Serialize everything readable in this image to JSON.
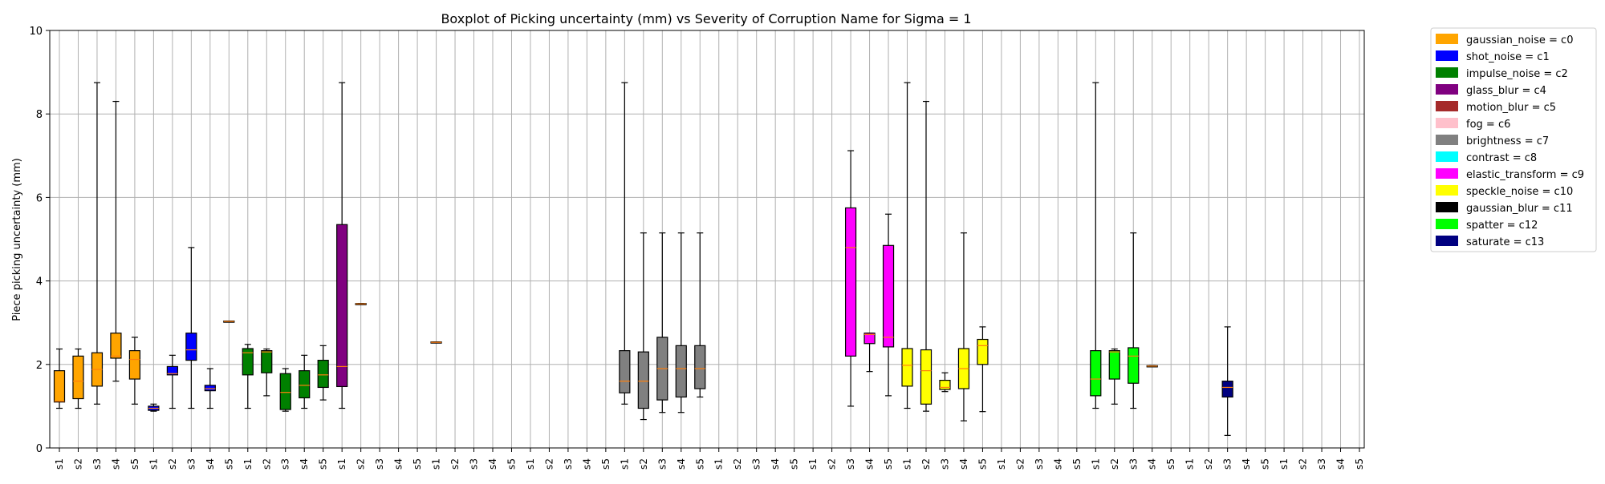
{
  "chart_data": {
    "type": "box",
    "title": "Boxplot of Picking uncertainty (mm) vs Severity of Corruption Name for Sigma = 1",
    "xlabel": "",
    "ylabel": "Piece picking uncertainty (mm)",
    "ylim": [
      0,
      10
    ],
    "yticks": [
      0,
      2,
      4,
      6,
      8,
      10
    ],
    "grid": true,
    "legend_position": "right, outside plot",
    "median_color": "#ff7f0e",
    "categories": [
      "s1",
      "s2",
      "s3",
      "s4",
      "s5",
      "s1",
      "s2",
      "s3",
      "s4",
      "s5",
      "s1",
      "s2",
      "s3",
      "s4",
      "s5",
      "s1",
      "s2",
      "s3",
      "s4",
      "s5",
      "s1",
      "s2",
      "s3",
      "s4",
      "s5",
      "s1",
      "s2",
      "s3",
      "s4",
      "s5",
      "s1",
      "s2",
      "s3",
      "s4",
      "s5",
      "s1",
      "s2",
      "s3",
      "s4",
      "s5",
      "s1",
      "s2",
      "s3",
      "s4",
      "s5",
      "s1",
      "s2",
      "s3",
      "s4",
      "s5",
      "s1",
      "s2",
      "s3",
      "s4",
      "s5",
      "s1",
      "s2",
      "s3",
      "s4",
      "s5",
      "s1",
      "s2",
      "s3",
      "s4",
      "s5",
      "s1",
      "s2",
      "s3",
      "s4",
      "s5"
    ],
    "series": [
      {
        "name": "gaussian_noise = c0",
        "color": "#ffa500",
        "boxes": [
          {
            "x": 0,
            "min": 0.95,
            "q1": 1.1,
            "median": 1.12,
            "q3": 1.85,
            "max": 2.37
          },
          {
            "x": 1,
            "min": 0.95,
            "q1": 1.18,
            "median": 1.6,
            "q3": 2.2,
            "max": 2.37
          },
          {
            "x": 2,
            "min": 1.05,
            "q1": 1.48,
            "median": 1.88,
            "q3": 2.28,
            "max": 8.75
          },
          {
            "x": 3,
            "min": 1.6,
            "q1": 2.15,
            "median": 2.2,
            "q3": 2.75,
            "max": 8.3
          },
          {
            "x": 4,
            "min": 1.05,
            "q1": 1.65,
            "median": 2.12,
            "q3": 2.33,
            "max": 2.65
          }
        ]
      },
      {
        "name": "shot_noise = c1",
        "color": "#0000ff",
        "boxes": [
          {
            "x": 5,
            "min": 0.88,
            "q1": 0.9,
            "median": 0.95,
            "q3": 1.0,
            "max": 1.05
          },
          {
            "x": 6,
            "min": 0.95,
            "q1": 1.75,
            "median": 1.78,
            "q3": 1.95,
            "max": 2.22
          },
          {
            "x": 7,
            "min": 0.95,
            "q1": 2.1,
            "median": 2.35,
            "q3": 2.75,
            "max": 4.8
          },
          {
            "x": 8,
            "min": 0.95,
            "q1": 1.37,
            "median": 1.42,
            "q3": 1.5,
            "max": 1.9
          }
        ]
      },
      {
        "name": "impulse_noise = c2",
        "color": "#008000",
        "boxes": [
          {
            "x": 9,
            "min": 3.02,
            "q1": 3.02,
            "median": 3.03,
            "q3": 3.04,
            "max": 3.04
          },
          {
            "x": 10,
            "min": 0.95,
            "q1": 1.75,
            "median": 2.28,
            "q3": 2.38,
            "max": 2.48
          },
          {
            "x": 11,
            "min": 1.25,
            "q1": 1.8,
            "median": 2.3,
            "q3": 2.33,
            "max": 2.37
          },
          {
            "x": 12,
            "min": 0.88,
            "q1": 0.92,
            "median": 1.33,
            "q3": 1.78,
            "max": 1.9
          },
          {
            "x": 13,
            "min": 0.95,
            "q1": 1.2,
            "median": 1.5,
            "q3": 1.85,
            "max": 2.22
          },
          {
            "x": 14,
            "min": 1.15,
            "q1": 1.45,
            "median": 1.75,
            "q3": 2.1,
            "max": 2.45
          }
        ]
      },
      {
        "name": "glass_blur = c4",
        "color": "#800080",
        "boxes": [
          {
            "x": 15,
            "min": 0.95,
            "q1": 1.47,
            "median": 1.95,
            "q3": 5.35,
            "max": 8.75
          },
          {
            "x": 16,
            "min": 3.44,
            "q1": 3.44,
            "median": 3.45,
            "q3": 3.46,
            "max": 3.46
          },
          {
            "x": 20,
            "min": 2.52,
            "q1": 2.52,
            "median": 2.53,
            "q3": 2.54,
            "max": 2.54
          }
        ]
      },
      {
        "name": "motion_blur = c5",
        "color": "#a52a2a",
        "boxes": []
      },
      {
        "name": "fog = c6",
        "color": "#ffc0cb",
        "boxes": []
      },
      {
        "name": "brightness = c7",
        "color": "#808080",
        "boxes": [
          {
            "x": 30,
            "min": 1.05,
            "q1": 1.32,
            "median": 1.6,
            "q3": 2.33,
            "max": 8.75
          },
          {
            "x": 31,
            "min": 0.68,
            "q1": 0.95,
            "median": 1.6,
            "q3": 2.3,
            "max": 5.15
          },
          {
            "x": 32,
            "min": 0.85,
            "q1": 1.15,
            "median": 1.9,
            "q3": 2.65,
            "max": 5.15
          },
          {
            "x": 33,
            "min": 0.85,
            "q1": 1.22,
            "median": 1.9,
            "q3": 2.45,
            "max": 5.15
          },
          {
            "x": 34,
            "min": 1.22,
            "q1": 1.42,
            "median": 1.9,
            "q3": 2.45,
            "max": 5.15
          }
        ]
      },
      {
        "name": "contrast = c8",
        "color": "#00ffff",
        "boxes": []
      },
      {
        "name": "elastic_transform = c9",
        "color": "#ff00ff",
        "boxes": [
          {
            "x": 42,
            "min": 1.0,
            "q1": 2.2,
            "median": 4.8,
            "q3": 5.75,
            "max": 7.12
          },
          {
            "x": 43,
            "min": 1.83,
            "q1": 2.5,
            "median": 2.72,
            "q3": 2.75,
            "max": 2.75
          },
          {
            "x": 44,
            "min": 1.25,
            "q1": 2.42,
            "median": 2.65,
            "q3": 4.85,
            "max": 5.6
          }
        ]
      },
      {
        "name": "speckle_noise = c10",
        "color": "#ffff00",
        "boxes": [
          {
            "x": 45,
            "min": 0.95,
            "q1": 1.48,
            "median": 1.98,
            "q3": 2.38,
            "max": 8.75
          },
          {
            "x": 46,
            "min": 0.88,
            "q1": 1.05,
            "median": 1.85,
            "q3": 2.35,
            "max": 8.3
          },
          {
            "x": 47,
            "min": 1.35,
            "q1": 1.4,
            "median": 1.45,
            "q3": 1.62,
            "max": 1.8
          },
          {
            "x": 48,
            "min": 0.65,
            "q1": 1.42,
            "median": 1.9,
            "q3": 2.38,
            "max": 5.15
          },
          {
            "x": 49,
            "min": 0.87,
            "q1": 2.0,
            "median": 2.45,
            "q3": 2.6,
            "max": 2.9
          }
        ]
      },
      {
        "name": "gaussian_blur = c11",
        "color": "#000000",
        "boxes": []
      },
      {
        "name": "spatter = c12",
        "color": "#00ff00",
        "boxes": [
          {
            "x": 55,
            "min": 0.95,
            "q1": 1.25,
            "median": 1.65,
            "q3": 2.33,
            "max": 8.75
          },
          {
            "x": 56,
            "min": 1.05,
            "q1": 1.65,
            "median": 2.3,
            "q3": 2.33,
            "max": 2.37
          },
          {
            "x": 57,
            "min": 0.95,
            "q1": 1.55,
            "median": 2.2,
            "q3": 2.4,
            "max": 5.15
          },
          {
            "x": 58,
            "min": 1.95,
            "q1": 1.95,
            "median": 1.96,
            "q3": 1.97,
            "max": 1.97
          }
        ]
      },
      {
        "name": "saturate = c13",
        "color": "#000080",
        "boxes": [
          {
            "x": 62,
            "min": 0.3,
            "q1": 1.22,
            "median": 1.45,
            "q3": 1.6,
            "max": 2.9
          }
        ]
      }
    ]
  }
}
